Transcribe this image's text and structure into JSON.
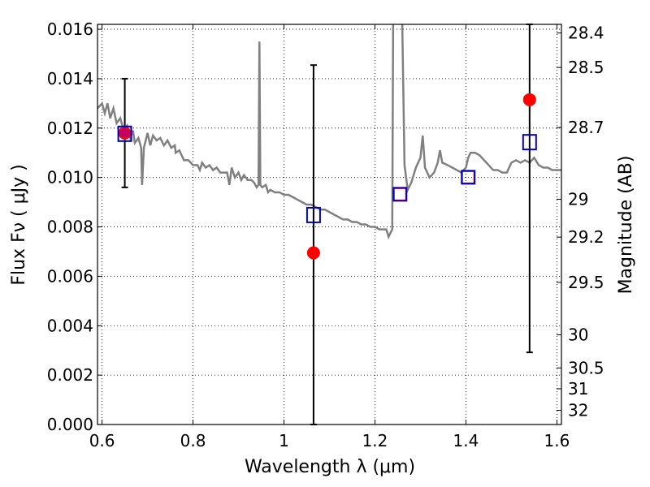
{
  "chart_data": {
    "type": "scatter",
    "xlabel": "Wavelength  λ (μm)",
    "ylabel": "Flux  Fν  ( μJy )",
    "ylabel_right": "Magnitude (AB)",
    "xlim": [
      0.59,
      1.61
    ],
    "ylim": [
      0.0,
      0.0162
    ],
    "grid": "dotted",
    "x_ticks": [
      {
        "value": 0.6,
        "label": "0.6"
      },
      {
        "value": 0.8,
        "label": "0.8"
      },
      {
        "value": 1.0,
        "label": "1"
      },
      {
        "value": 1.2,
        "label": "1.2"
      },
      {
        "value": 1.4,
        "label": "1.4"
      },
      {
        "value": 1.6,
        "label": "1.6"
      }
    ],
    "y_ticks": [
      {
        "value": 0.0,
        "label": "0.000"
      },
      {
        "value": 0.002,
        "label": "0.002"
      },
      {
        "value": 0.004,
        "label": "0.004"
      },
      {
        "value": 0.006,
        "label": "0.006"
      },
      {
        "value": 0.008,
        "label": "0.008"
      },
      {
        "value": 0.01,
        "label": "0.010"
      },
      {
        "value": 0.012,
        "label": "0.012"
      },
      {
        "value": 0.014,
        "label": "0.014"
      },
      {
        "value": 0.016,
        "label": "0.016"
      }
    ],
    "mag_ticks": [
      {
        "mag": 28.4,
        "label": "28.4"
      },
      {
        "mag": 28.5,
        "label": "28.5"
      },
      {
        "mag": 28.7,
        "label": "28.7"
      },
      {
        "mag": 29.0,
        "label": "29"
      },
      {
        "mag": 29.2,
        "label": "29.2"
      },
      {
        "mag": 29.5,
        "label": "29.5"
      },
      {
        "mag": 30.0,
        "label": "30"
      },
      {
        "mag": 30.5,
        "label": "30.5"
      },
      {
        "mag": 31.0,
        "label": "31"
      },
      {
        "mag": 32.0,
        "label": "32"
      }
    ],
    "series": [
      {
        "kind": "spectrum",
        "color": "#808080",
        "points": [
          [
            0.59,
            0.0128
          ],
          [
            0.6,
            0.013
          ],
          [
            0.606,
            0.0126
          ],
          [
            0.612,
            0.013
          ],
          [
            0.618,
            0.0124
          ],
          [
            0.625,
            0.0128
          ],
          [
            0.632,
            0.0122
          ],
          [
            0.64,
            0.0124
          ],
          [
            0.648,
            0.0119
          ],
          [
            0.655,
            0.0121
          ],
          [
            0.662,
            0.0116
          ],
          [
            0.668,
            0.0119
          ],
          [
            0.672,
            0.0114
          ],
          [
            0.68,
            0.0116
          ],
          [
            0.686,
            0.0112
          ],
          [
            0.688,
            0.0097
          ],
          [
            0.692,
            0.0112
          ],
          [
            0.7,
            0.0118
          ],
          [
            0.706,
            0.0113
          ],
          [
            0.712,
            0.0117
          ],
          [
            0.72,
            0.0115
          ],
          [
            0.728,
            0.0116
          ],
          [
            0.736,
            0.0113
          ],
          [
            0.744,
            0.0115
          ],
          [
            0.752,
            0.0112
          ],
          [
            0.76,
            0.0113
          ],
          [
            0.762,
            0.011
          ],
          [
            0.77,
            0.0111
          ],
          [
            0.78,
            0.0107
          ],
          [
            0.79,
            0.0107
          ],
          [
            0.8,
            0.0105
          ],
          [
            0.81,
            0.0105
          ],
          [
            0.815,
            0.0103
          ],
          [
            0.82,
            0.0106
          ],
          [
            0.828,
            0.0104
          ],
          [
            0.836,
            0.0105
          ],
          [
            0.844,
            0.0103
          ],
          [
            0.852,
            0.0104
          ],
          [
            0.86,
            0.0102
          ],
          [
            0.868,
            0.0102
          ],
          [
            0.875,
            0.0102
          ],
          [
            0.88,
            0.0097
          ],
          [
            0.885,
            0.0104
          ],
          [
            0.892,
            0.01
          ],
          [
            0.9,
            0.0102
          ],
          [
            0.906,
            0.0099
          ],
          [
            0.912,
            0.0101
          ],
          [
            0.92,
            0.0099
          ],
          [
            0.928,
            0.0099
          ],
          [
            0.934,
            0.0098
          ],
          [
            0.94,
            0.0096
          ],
          [
            0.944,
            0.0097
          ],
          [
            0.946,
            0.0155
          ],
          [
            0.948,
            0.0097
          ],
          [
            0.952,
            0.0096
          ],
          [
            0.96,
            0.0097
          ],
          [
            0.965,
            0.0094
          ],
          [
            0.97,
            0.0095
          ],
          [
            0.98,
            0.0094
          ],
          [
            0.99,
            0.0094
          ],
          [
            1.0,
            0.0093
          ],
          [
            1.01,
            0.0093
          ],
          [
            1.02,
            0.0092
          ],
          [
            1.03,
            0.0091
          ],
          [
            1.04,
            0.009
          ],
          [
            1.05,
            0.0089
          ],
          [
            1.06,
            0.0089
          ],
          [
            1.07,
            0.0088
          ],
          [
            1.08,
            0.0087
          ],
          [
            1.09,
            0.0087
          ],
          [
            1.1,
            0.0086
          ],
          [
            1.11,
            0.0085
          ],
          [
            1.12,
            0.0084
          ],
          [
            1.13,
            0.0083
          ],
          [
            1.14,
            0.0083
          ],
          [
            1.15,
            0.0082
          ],
          [
            1.16,
            0.0082
          ],
          [
            1.17,
            0.0081
          ],
          [
            1.18,
            0.0081
          ],
          [
            1.19,
            0.008
          ],
          [
            1.2,
            0.008
          ],
          [
            1.21,
            0.0079
          ],
          [
            1.225,
            0.0079
          ],
          [
            1.23,
            0.0076
          ],
          [
            1.238,
            0.0079
          ],
          [
            1.24,
            0.0165
          ],
          [
            1.26,
            0.0165
          ],
          [
            1.265,
            0.0105
          ],
          [
            1.272,
            0.0095
          ],
          [
            1.28,
            0.0098
          ],
          [
            1.29,
            0.0104
          ],
          [
            1.3,
            0.0108
          ],
          [
            1.305,
            0.0117
          ],
          [
            1.31,
            0.0104
          ],
          [
            1.32,
            0.01
          ],
          [
            1.33,
            0.0102
          ],
          [
            1.338,
            0.0106
          ],
          [
            1.343,
            0.0111
          ],
          [
            1.348,
            0.0106
          ],
          [
            1.36,
            0.0105
          ],
          [
            1.37,
            0.0104
          ],
          [
            1.38,
            0.0103
          ],
          [
            1.39,
            0.0102
          ],
          [
            1.4,
            0.0104
          ],
          [
            1.405,
            0.0108
          ],
          [
            1.41,
            0.011
          ],
          [
            1.42,
            0.011
          ],
          [
            1.43,
            0.0109
          ],
          [
            1.44,
            0.0107
          ],
          [
            1.45,
            0.0105
          ],
          [
            1.46,
            0.0103
          ],
          [
            1.47,
            0.0103
          ],
          [
            1.48,
            0.0102
          ],
          [
            1.49,
            0.0102
          ],
          [
            1.5,
            0.0106
          ],
          [
            1.51,
            0.0107
          ],
          [
            1.52,
            0.0106
          ],
          [
            1.53,
            0.0107
          ],
          [
            1.54,
            0.0106
          ],
          [
            1.55,
            0.0108
          ],
          [
            1.56,
            0.0105
          ],
          [
            1.57,
            0.0104
          ],
          [
            1.58,
            0.0104
          ],
          [
            1.59,
            0.0103
          ],
          [
            1.6,
            0.0103
          ],
          [
            1.61,
            0.0103
          ]
        ]
      },
      {
        "kind": "observed",
        "color": "#ff0000",
        "points": [
          {
            "x": 0.65,
            "y": 0.0118,
            "err_low": 0.0096,
            "err_high": 0.014
          },
          {
            "x": 1.065,
            "y": 0.00695,
            "err_low": 0.0,
            "err_high": 0.01455
          },
          {
            "x": 1.54,
            "y": 0.01315,
            "err_low": 0.00292,
            "err_high": 0.0162
          }
        ]
      },
      {
        "kind": "model-band-large",
        "color": "#0000cc",
        "points": [
          {
            "x": 0.65,
            "y": 0.01177
          },
          {
            "x": 1.065,
            "y": 0.00848
          },
          {
            "x": 1.54,
            "y": 0.01143
          }
        ]
      },
      {
        "kind": "model-band-small",
        "color": "#0000cc",
        "points": [
          {
            "x": 1.255,
            "y": 0.00932
          },
          {
            "x": 1.405,
            "y": 0.01001
          }
        ]
      }
    ]
  }
}
